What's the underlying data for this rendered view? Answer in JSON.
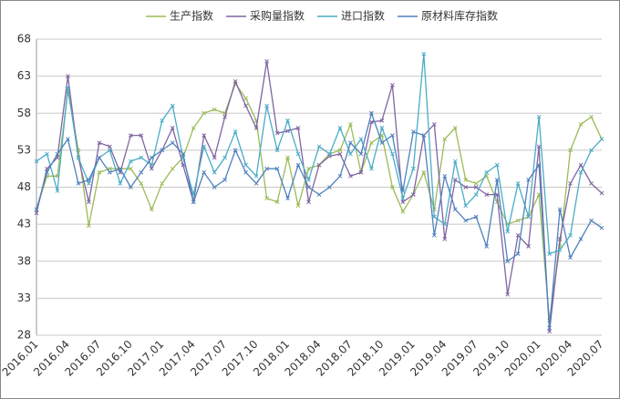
{
  "chart_data": {
    "type": "line",
    "categories": [
      "2016.01",
      null,
      null,
      "2016.04",
      null,
      null,
      "2016.07",
      null,
      null,
      "2016.10",
      null,
      null,
      "2017.01",
      null,
      null,
      "2017.04",
      null,
      null,
      "2017.07",
      null,
      null,
      "2017.10",
      null,
      null,
      "2018.01",
      null,
      null,
      "2018.04",
      null,
      null,
      "2018.07",
      null,
      null,
      "2018.10",
      null,
      null,
      "2019.01",
      null,
      null,
      "2019.04",
      null,
      null,
      "2019.07",
      null,
      null,
      "2019.10",
      null,
      null,
      "2020.01",
      null,
      null,
      "2020.04",
      null,
      null,
      "2020.07"
    ],
    "series": [
      {
        "name": "生产指数",
        "color": "#9bbb59",
        "values": [
          45,
          49.5,
          49.5,
          61,
          53,
          42.8,
          50,
          50.5,
          50.5,
          50.5,
          48.5,
          45,
          48.5,
          50.5,
          52,
          56,
          58,
          58.5,
          58,
          62,
          60,
          57,
          46.5,
          46,
          52,
          45.5,
          50.5,
          51,
          52.5,
          53,
          56.5,
          50,
          54,
          55,
          48,
          44.7,
          47,
          50,
          45,
          54.5,
          56,
          49,
          48.5,
          49.5,
          46,
          43,
          43.5,
          44,
          47,
          30,
          40,
          53,
          56.5,
          57.5,
          54.5
        ]
      },
      {
        "name": "采购量指数",
        "color": "#8064a2",
        "values": [
          44.5,
          50.5,
          52,
          63,
          52,
          46,
          54,
          53.5,
          50,
          55,
          55,
          50.5,
          53,
          56,
          51,
          46,
          55,
          52,
          57.5,
          62.3,
          59,
          56,
          65,
          55.3,
          55.6,
          56,
          46,
          51,
          52.2,
          52.5,
          49.5,
          50,
          56.8,
          57,
          61.8,
          46,
          47,
          55,
          56.5,
          41,
          49,
          48,
          48,
          47,
          47,
          33.5,
          41.5,
          40,
          53.5,
          28.5,
          41,
          48.5,
          51,
          48.5,
          47.2
        ]
      },
      {
        "name": "进口指数",
        "color": "#4bacc6",
        "values": [
          51.5,
          52.5,
          47.5,
          61.5,
          52,
          48.5,
          52,
          53,
          48.5,
          51.5,
          52,
          51,
          57,
          59,
          52,
          47,
          53.5,
          50,
          52,
          55.5,
          51,
          49.5,
          59,
          53,
          57,
          52.5,
          49,
          53.5,
          52.5,
          56,
          52.5,
          54.5,
          50.5,
          56,
          52.5,
          46.5,
          50.5,
          66,
          44,
          43,
          51.5,
          45.5,
          47,
          50,
          51,
          42,
          48.5,
          44,
          57.5,
          39,
          39.5,
          41.5,
          50,
          53,
          54.5
        ]
      },
      {
        "name": "原材料库存指数",
        "color": "#4f81bd",
        "values": [
          45,
          50,
          52.5,
          54.5,
          48.5,
          49,
          52,
          50,
          50.5,
          48,
          50,
          52,
          53,
          54,
          52.5,
          46,
          50,
          48,
          49,
          53,
          50,
          48.5,
          50.5,
          50.5,
          46.5,
          51,
          48,
          47,
          48,
          49.5,
          54,
          52.5,
          58,
          54,
          55,
          47.5,
          55.5,
          55,
          41.5,
          49.5,
          45,
          43.5,
          44,
          40,
          49,
          38,
          39,
          49,
          51,
          29,
          45,
          38.5,
          41,
          43.5,
          42.5
        ]
      }
    ],
    "ylim": [
      28,
      68
    ],
    "yticks": [
      28,
      33,
      38,
      43,
      48,
      53,
      58,
      63,
      68
    ],
    "grid": true
  }
}
